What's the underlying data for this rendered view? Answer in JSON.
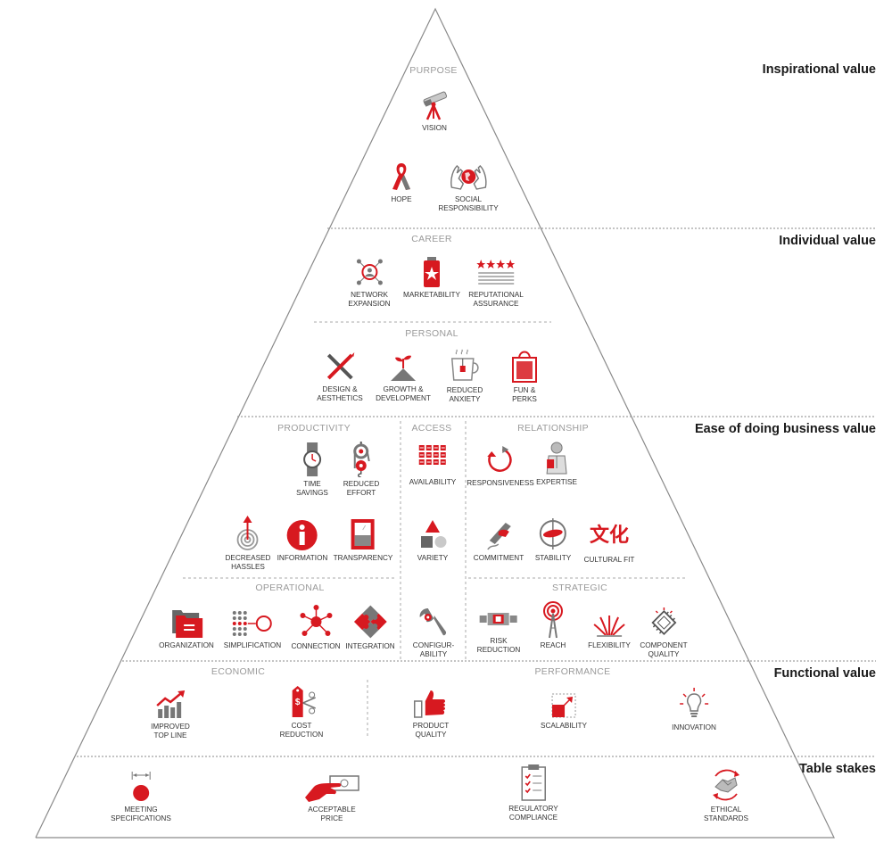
{
  "colors": {
    "accent": "#d71920",
    "dark": "#555555",
    "mid": "#8c8c8c",
    "light": "#bdbdbd",
    "line": "#888888"
  },
  "tiers": {
    "inspirational": "Inspirational value",
    "individual": "Individual value",
    "ease": "Ease of doing business value",
    "functional": "Functional value",
    "table": "Table stakes"
  },
  "sections": {
    "purpose": "PURPOSE",
    "career": "CAREER",
    "personal": "PERSONAL",
    "productivity": "PRODUCTIVITY",
    "access": "ACCESS",
    "relationship": "RELATIONSHIP",
    "operational": "OPERATIONAL",
    "strategic": "STRATEGIC",
    "economic": "ECONOMIC",
    "performance": "PERFORMANCE"
  },
  "items": {
    "vision": {
      "label": "VISION",
      "icon": "telescope-icon"
    },
    "hope": {
      "label": "HOPE",
      "icon": "ribbon-icon"
    },
    "social": {
      "label": "SOCIAL\nRESPONSIBILITY",
      "icon": "hands-globe-icon"
    },
    "network": {
      "label": "NETWORK\nEXPANSION",
      "icon": "network-icon"
    },
    "market": {
      "label": "MARKETABILITY",
      "icon": "star-can-icon"
    },
    "reput": {
      "label": "REPUTATIONAL\nASSURANCE",
      "icon": "star-rating-icon"
    },
    "design": {
      "label": "DESIGN &\nAESTHETICS",
      "icon": "pencil-cross-icon"
    },
    "growth": {
      "label": "GROWTH &\nDEVELOPMENT",
      "icon": "sprout-icon"
    },
    "anxiety": {
      "label": "REDUCED\nANXIETY",
      "icon": "tea-cup-icon"
    },
    "fun": {
      "label": "FUN &\nPERKS",
      "icon": "shopping-bag-icon"
    },
    "time": {
      "label": "TIME\nSAVINGS",
      "icon": "watch-icon"
    },
    "effort": {
      "label": "REDUCED\nEFFORT",
      "icon": "pulley-icon"
    },
    "avail": {
      "label": "AVAILABILITY",
      "icon": "calendar-grid-icon"
    },
    "resp": {
      "label": "RESPONSIVENESS",
      "icon": "circular-arrow-icon"
    },
    "expert": {
      "label": "EXPERTISE",
      "icon": "professor-icon"
    },
    "hassle": {
      "label": "DECREASED\nHASSLES",
      "icon": "spiral-arrow-icon"
    },
    "info": {
      "label": "INFORMATION",
      "icon": "info-icon"
    },
    "transp": {
      "label": "TRANSPARENCY",
      "icon": "window-icon"
    },
    "variety": {
      "label": "VARIETY",
      "icon": "shapes-icon"
    },
    "commit": {
      "label": "COMMITMENT",
      "icon": "signing-hand-icon"
    },
    "stab": {
      "label": "STABILITY",
      "icon": "gyroscope-icon"
    },
    "cultural": {
      "label": "CULTURAL FIT",
      "icon": "chinese-characters-icon",
      "glyph": "文化"
    },
    "org": {
      "label": "ORGANIZATION",
      "icon": "folders-icon"
    },
    "simp": {
      "label": "SIMPLIFICATION",
      "icon": "dots-to-circle-icon"
    },
    "conn": {
      "label": "CONNECTION",
      "icon": "hub-icon"
    },
    "integ": {
      "label": "INTEGRATION",
      "icon": "puzzle-icon"
    },
    "config": {
      "label": "CONFIGUR-\nABILITY",
      "icon": "wrench-icon"
    },
    "risk": {
      "label": "RISK\nREDUCTION",
      "icon": "fuse-icon"
    },
    "reach": {
      "label": "REACH",
      "icon": "radio-tower-icon"
    },
    "flex": {
      "label": "FLEXIBILITY",
      "icon": "flexible-lines-icon"
    },
    "comp": {
      "label": "COMPONENT\nQUALITY",
      "icon": "microchip-icon"
    },
    "topline": {
      "label": "IMPROVED\nTOP LINE",
      "icon": "growth-chart-icon"
    },
    "cost": {
      "label": "COST\nREDUCTION",
      "icon": "price-tag-scissors-icon"
    },
    "quality": {
      "label": "PRODUCT\nQUALITY",
      "icon": "thumbs-up-icon"
    },
    "scal": {
      "label": "SCALABILITY",
      "icon": "scale-arrow-icon"
    },
    "innov": {
      "label": "INNOVATION",
      "icon": "lightbulb-icon"
    },
    "spec": {
      "label": "MEETING\nSPECIFICATIONS",
      "icon": "measure-dot-icon"
    },
    "price": {
      "label": "ACCEPTABLE\nPRICE",
      "icon": "hand-money-icon"
    },
    "reg": {
      "label": "REGULATORY\nCOMPLIANCE",
      "icon": "clipboard-check-icon"
    },
    "ethic": {
      "label": "ETHICAL\nSTANDARDS",
      "icon": "handshake-icon"
    }
  }
}
